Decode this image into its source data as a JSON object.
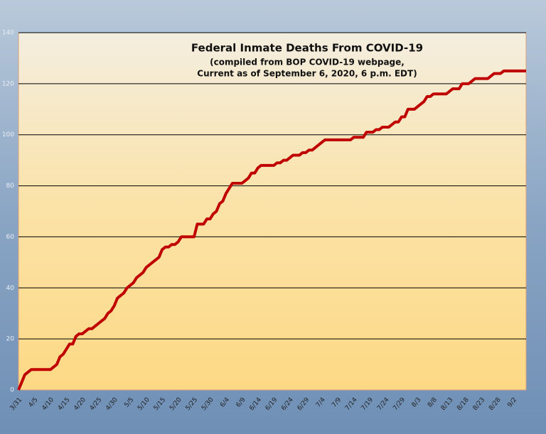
{
  "chart_data": {
    "type": "line",
    "title": "Federal Inmate Deaths From COVID-19",
    "subtitle": [
      "(compiled from BOP COVID-19 webpage,",
      "Current as of September 6, 2020, 6 p.m. EDT)"
    ],
    "categories": [
      "3/31",
      null,
      null,
      null,
      null,
      "4/5",
      null,
      null,
      null,
      null,
      "4/10",
      null,
      null,
      null,
      null,
      "4/15",
      null,
      null,
      null,
      null,
      "4/20",
      null,
      null,
      null,
      null,
      "4/25",
      null,
      null,
      null,
      null,
      "4/30",
      null,
      null,
      null,
      null,
      "5/5",
      null,
      null,
      null,
      null,
      "5/10",
      null,
      null,
      null,
      null,
      "5/15",
      null,
      null,
      null,
      null,
      "5/20",
      null,
      null,
      null,
      null,
      "5/25",
      null,
      null,
      null,
      null,
      "5/30",
      null,
      null,
      null,
      null,
      "6/4",
      null,
      null,
      null,
      null,
      "6/9",
      null,
      null,
      null,
      null,
      "6/14",
      null,
      null,
      null,
      null,
      "6/19",
      null,
      null,
      null,
      null,
      "6/24",
      null,
      null,
      null,
      null,
      "6/29",
      null,
      null,
      null,
      null,
      "7/4",
      null,
      null,
      null,
      null,
      "7/9",
      null,
      null,
      null,
      null,
      "7/14",
      null,
      null,
      null,
      null,
      "7/19",
      null,
      null,
      null,
      null,
      "7/24",
      null,
      null,
      null,
      null,
      "7/29",
      null,
      null,
      null,
      null,
      "8/3",
      null,
      null,
      null,
      null,
      "8/8",
      null,
      null,
      null,
      null,
      "8/13",
      null,
      null,
      null,
      null,
      "8/18",
      null,
      null,
      null,
      null,
      "8/23",
      null,
      null,
      null,
      null,
      "8/28",
      null,
      null,
      null,
      null,
      "9/2",
      null,
      null,
      null,
      null
    ],
    "values": [
      0,
      3,
      6,
      7,
      8,
      8,
      8,
      8,
      8,
      8,
      8,
      9,
      10,
      13,
      14,
      16,
      18,
      18,
      21,
      22,
      22,
      23,
      24,
      24,
      25,
      26,
      27,
      28,
      30,
      31,
      33,
      36,
      37,
      38,
      40,
      41,
      42,
      44,
      45,
      46,
      48,
      49,
      50,
      51,
      52,
      55,
      56,
      56,
      57,
      57,
      58,
      60,
      60,
      60,
      60,
      60,
      65,
      65,
      65,
      67,
      67,
      69,
      70,
      73,
      74,
      77,
      79,
      81,
      81,
      81,
      81,
      82,
      83,
      85,
      85,
      87,
      88,
      88,
      88,
      88,
      88,
      89,
      89,
      90,
      90,
      91,
      92,
      92,
      92,
      93,
      93,
      94,
      94,
      95,
      96,
      97,
      98,
      98,
      98,
      98,
      98,
      98,
      98,
      98,
      98,
      99,
      99,
      99,
      99,
      101,
      101,
      101,
      102,
      102,
      103,
      103,
      103,
      104,
      105,
      105,
      107,
      107,
      110,
      110,
      110,
      111,
      112,
      113,
      115,
      115,
      116,
      116,
      116,
      116,
      116,
      117,
      118,
      118,
      118,
      120,
      120,
      120,
      121,
      122,
      122,
      122,
      122,
      122,
      123,
      124,
      124,
      124,
      125,
      125,
      125,
      125,
      125,
      125,
      125,
      125
    ],
    "color": "#c00000",
    "ylim": [
      0,
      140
    ],
    "yticks": [
      0,
      20,
      40,
      60,
      80,
      100,
      120,
      140
    ],
    "grid": true
  }
}
